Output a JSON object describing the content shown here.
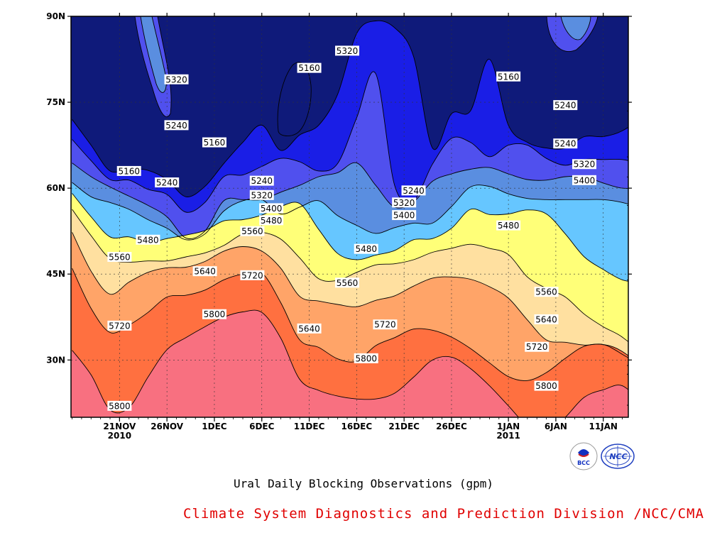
{
  "chart_data": {
    "type": "contour",
    "title": "Ural Daily Blocking Observations (gpm)",
    "ylim": [
      "20N",
      "90N"
    ],
    "yticks": [
      "30N",
      "45N",
      "60N",
      "75N",
      "90N"
    ],
    "xticks": [
      {
        "date": "21NOV",
        "year": "2010"
      },
      {
        "date": "26NOV",
        "year": ""
      },
      {
        "date": "1DEC",
        "year": ""
      },
      {
        "date": "6DEC",
        "year": ""
      },
      {
        "date": "11DEC",
        "year": ""
      },
      {
        "date": "16DEC",
        "year": ""
      },
      {
        "date": "21DEC",
        "year": ""
      },
      {
        "date": "26DEC",
        "year": ""
      },
      {
        "date": "1JAN",
        "year": "2011"
      },
      {
        "date": "6JAN",
        "year": ""
      },
      {
        "date": "11JAN",
        "year": ""
      }
    ],
    "grid": true,
    "levels": [
      5160,
      5240,
      5320,
      5400,
      5480,
      5560,
      5640,
      5720,
      5800
    ],
    "fill_colors": {
      "below_5160": "#0f1a7a",
      "5160_5240": "#1a1ee6",
      "5240_5320": "#5050ee",
      "5320_5400": "#5a8ee0",
      "5400_5480": "#66c6ff",
      "5480_5560": "#ffff78",
      "5560_5640": "#ffe0a0",
      "5640_5720": "#ffa468",
      "5720_5800": "#ff7040",
      "above_5800": "#f87080"
    },
    "contour_labels": [
      {
        "text": "5320",
        "date": "27NOV",
        "lat": 79
      },
      {
        "text": "5240",
        "date": "27NOV",
        "lat": 71
      },
      {
        "text": "5160",
        "date": "1DEC",
        "lat": 68
      },
      {
        "text": "5160",
        "date": "22NOV",
        "lat": 63
      },
      {
        "text": "5240",
        "date": "26NOV",
        "lat": 61
      },
      {
        "text": "5480",
        "date": "24NOV",
        "lat": 51
      },
      {
        "text": "5560",
        "date": "21NOV",
        "lat": 48
      },
      {
        "text": "5640",
        "date": "30NOV",
        "lat": 45.5
      },
      {
        "text": "5720",
        "date": "21NOV",
        "lat": 36
      },
      {
        "text": "5800",
        "date": "1DEC",
        "lat": 38
      },
      {
        "text": "5800",
        "date": "21NOV",
        "lat": 22
      },
      {
        "text": "5720",
        "date": "5DEC",
        "lat": 44.8
      },
      {
        "text": "5560",
        "date": "5DEC",
        "lat": 52.5
      },
      {
        "text": "5480",
        "date": "7DEC",
        "lat": 54.4
      },
      {
        "text": "5400",
        "date": "7DEC",
        "lat": 56.5
      },
      {
        "text": "5320",
        "date": "6DEC",
        "lat": 58.8
      },
      {
        "text": "5240",
        "date": "6DEC",
        "lat": 61.3
      },
      {
        "text": "5160",
        "date": "11DEC",
        "lat": 81
      },
      {
        "text": "5320",
        "date": "15DEC",
        "lat": 84
      },
      {
        "text": "5640",
        "date": "11DEC",
        "lat": 35.5
      },
      {
        "text": "5560",
        "date": "15DEC",
        "lat": 43.5
      },
      {
        "text": "5480",
        "date": "17DEC",
        "lat": 49.4
      },
      {
        "text": "5720",
        "date": "19DEC",
        "lat": 36.2
      },
      {
        "text": "5800",
        "date": "17DEC",
        "lat": 30.3
      },
      {
        "text": "5240",
        "date": "22DEC",
        "lat": 59.6
      },
      {
        "text": "5320",
        "date": "21DEC",
        "lat": 57.5
      },
      {
        "text": "5400",
        "date": "21DEC",
        "lat": 55.3
      },
      {
        "text": "5160",
        "date": "1JAN",
        "lat": 79.5
      },
      {
        "text": "5480",
        "date": "1JAN",
        "lat": 53.5
      },
      {
        "text": "5560",
        "date": "5JAN",
        "lat": 41.9
      },
      {
        "text": "5640",
        "date": "5JAN",
        "lat": 37.1
      },
      {
        "text": "5720",
        "date": "4JAN",
        "lat": 32.3
      },
      {
        "text": "5800",
        "date": "5JAN",
        "lat": 25.5
      },
      {
        "text": "5240",
        "date": "7JAN",
        "lat": 74.5
      },
      {
        "text": "5240",
        "date": "7JAN",
        "lat": 67.8
      },
      {
        "text": "5320",
        "date": "9JAN",
        "lat": 64.2
      },
      {
        "text": "5400",
        "date": "9JAN",
        "lat": 61.4
      }
    ]
  },
  "footer": {
    "title": "Ural Daily Blocking Observations (gpm)",
    "credit": "Climate System Diagnostics and Prediction Division /NCC/CMA",
    "logo_left_text": "BCC",
    "logo_right_text": "NCC"
  },
  "colors": {
    "credit": "#e00000"
  }
}
